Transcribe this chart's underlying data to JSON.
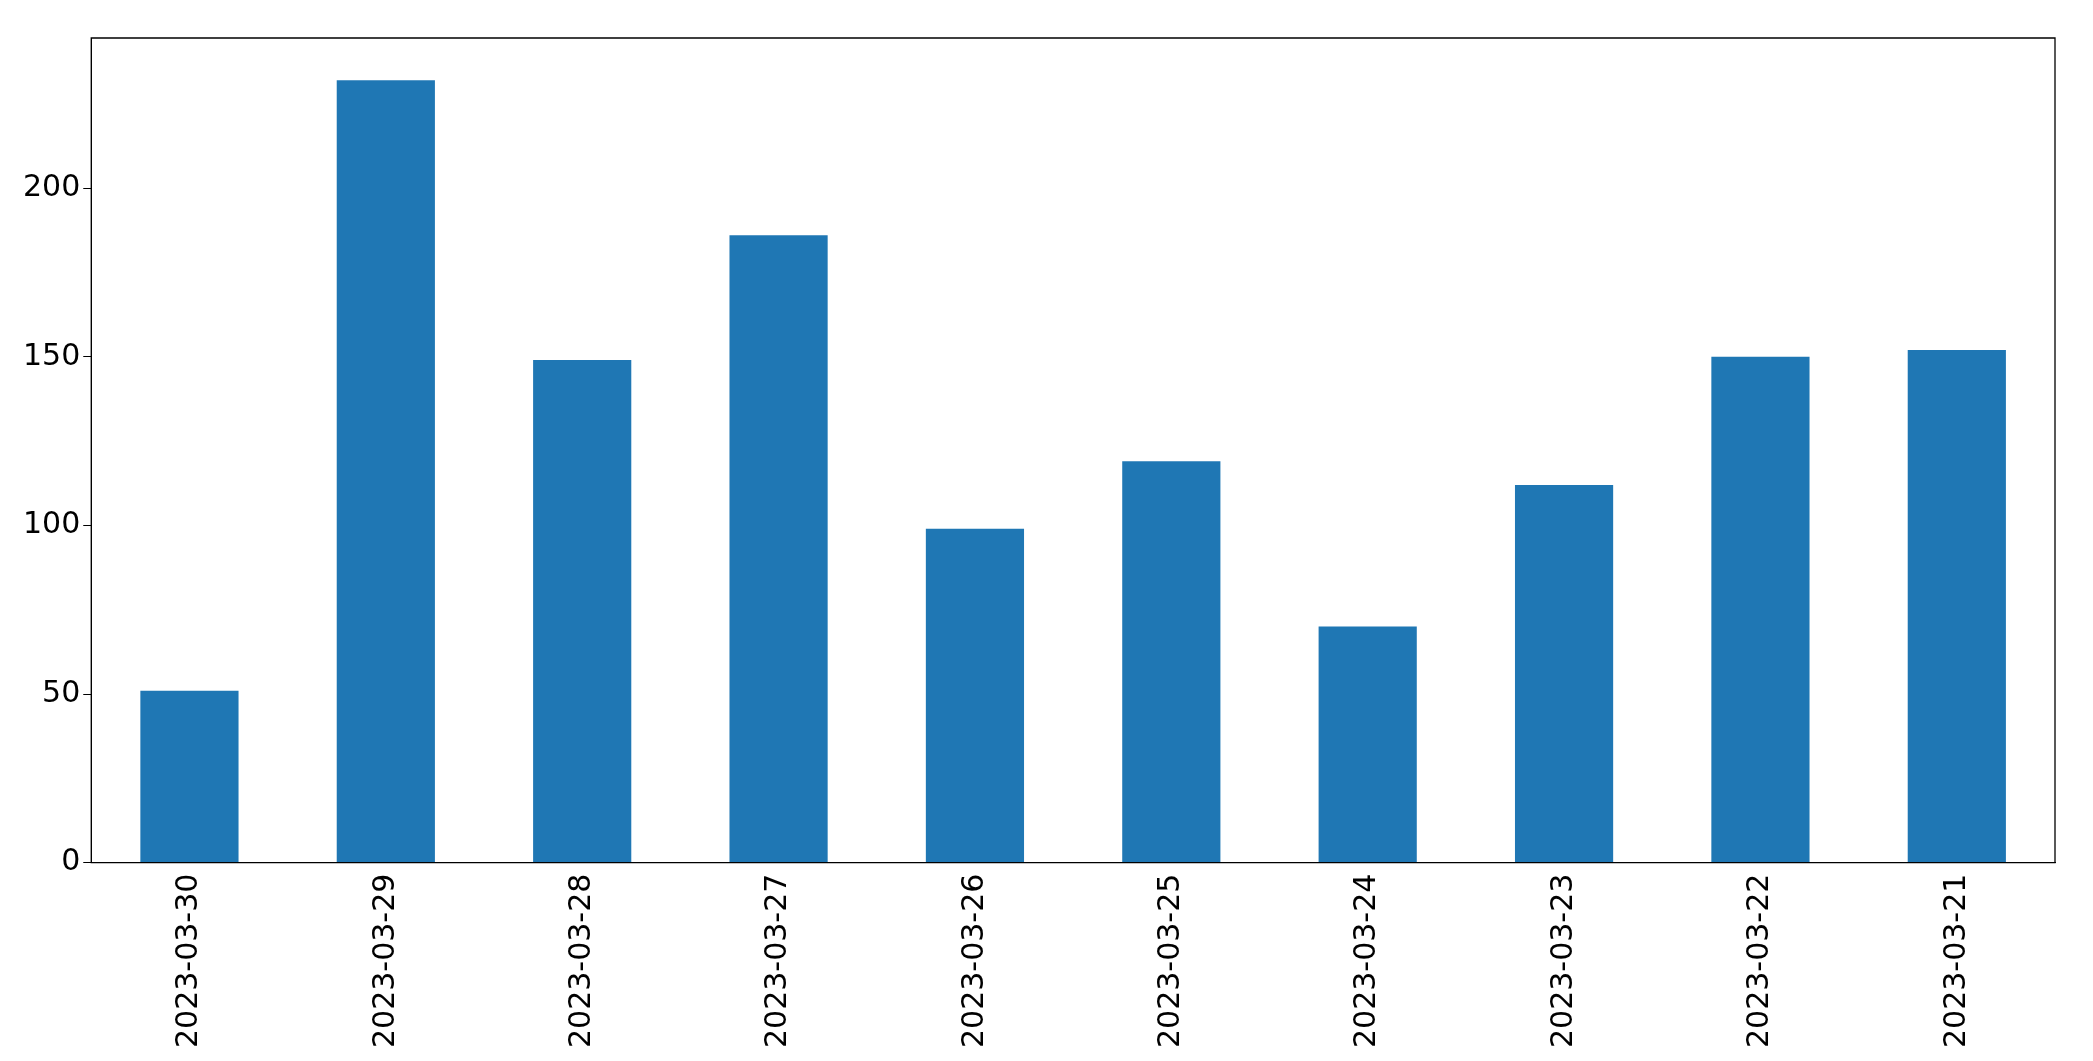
{
  "chart_data": {
    "type": "bar",
    "categories": [
      "2023-03-30",
      "2023-03-29",
      "2023-03-28",
      "2023-03-27",
      "2023-03-26",
      "2023-03-25",
      "2023-03-24",
      "2023-03-23",
      "2023-03-22",
      "2023-03-21"
    ],
    "values": [
      51,
      232,
      149,
      186,
      99,
      119,
      70,
      112,
      150,
      152
    ],
    "color": "#1f77b4",
    "ylim": [
      0,
      244.5
    ],
    "yticks": [
      0,
      50,
      100,
      150,
      200
    ],
    "grid": false,
    "legend": false
  }
}
